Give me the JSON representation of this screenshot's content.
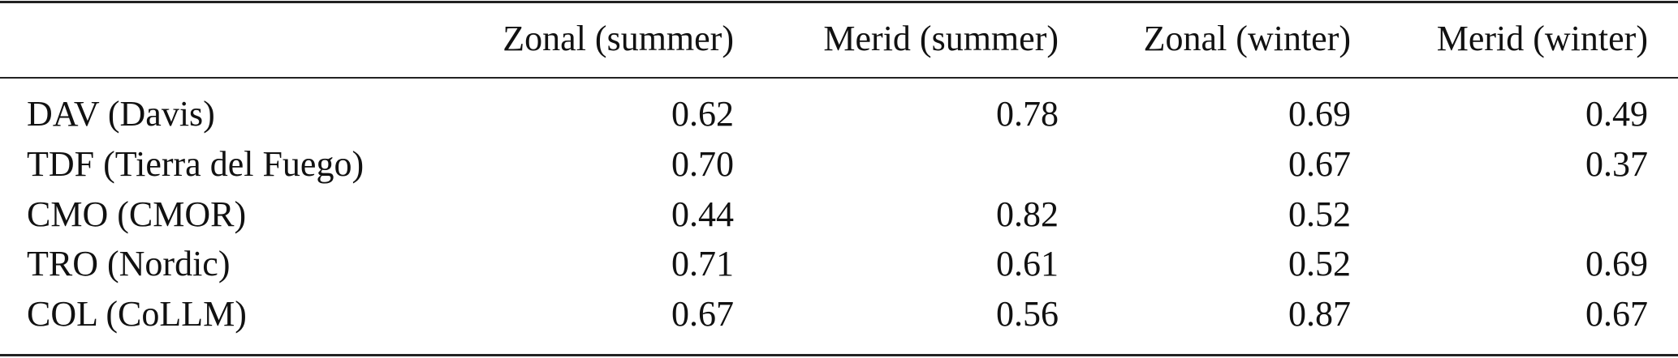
{
  "table": {
    "header": [
      "Zonal (summer)",
      "Merid (summer)",
      "Zonal (winter)",
      "Merid (winter)"
    ],
    "rows": [
      {
        "label": "DAV (Davis)",
        "cells": [
          "0.62",
          "0.78",
          "0.69",
          "0.49"
        ]
      },
      {
        "label": "TDF (Tierra del Fuego)",
        "cells": [
          "0.70",
          null,
          "0.67",
          "0.37"
        ]
      },
      {
        "label": "CMO (CMOR)",
        "cells": [
          "0.44",
          "0.82",
          "0.52",
          null
        ]
      },
      {
        "label": "TRO (Nordic)",
        "cells": [
          "0.71",
          "0.61",
          "0.52",
          "0.69"
        ]
      },
      {
        "label": "COL (CoLLM)",
        "cells": [
          "0.67",
          "0.56",
          "0.87",
          "0.67"
        ]
      }
    ]
  }
}
